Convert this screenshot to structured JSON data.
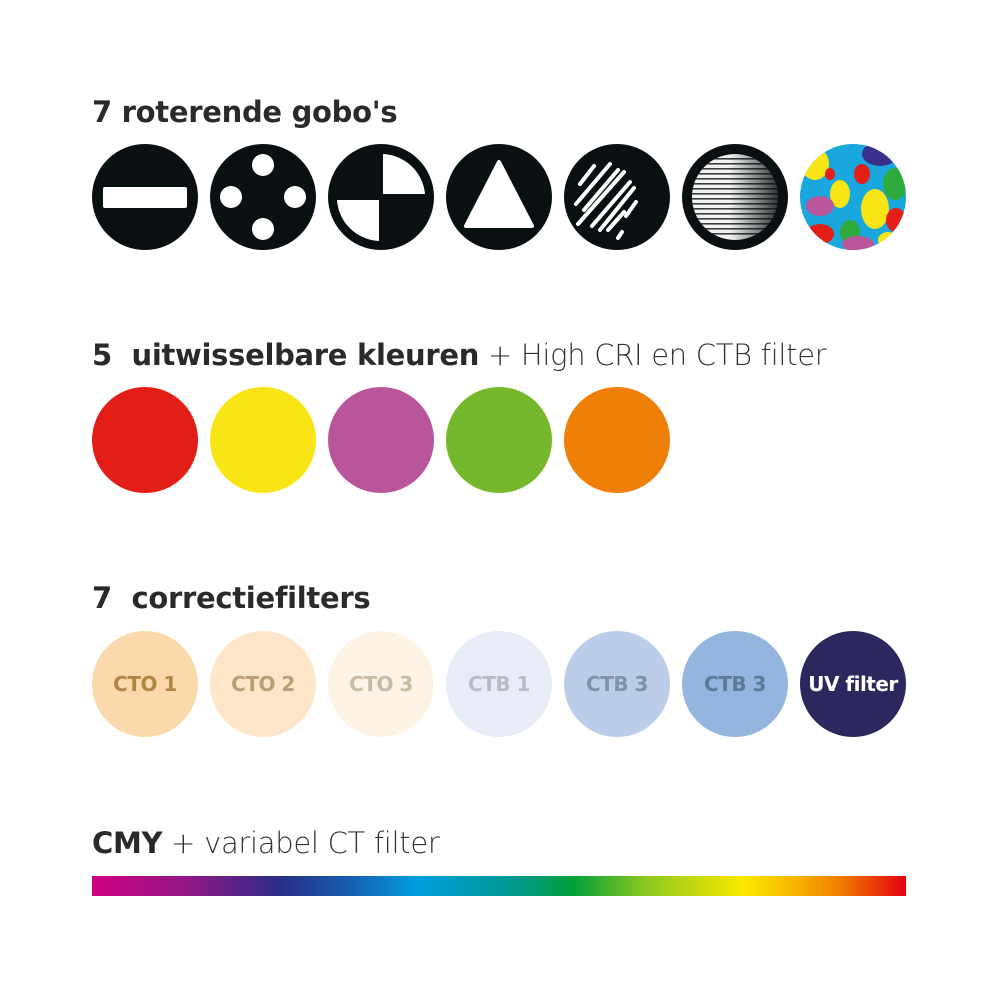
{
  "sections": {
    "gobos": {
      "title_bold": "7 roterende gobo's",
      "items": [
        "bar-gobo-icon",
        "four-dots-gobo-icon",
        "quadrant-gobo-icon",
        "triangle-gobo-icon",
        "streaks-gobo-icon",
        "lines-gradient-gobo-icon",
        "multicolor-pattern-gobo-icon"
      ]
    },
    "colors": {
      "title_bold": "5  uitwisselbare kleuren",
      "title_light": " + High CRI en CTB filter",
      "swatches": [
        "#e31e18",
        "#f9e516",
        "#b9569b",
        "#76b82c",
        "#f07f08"
      ]
    },
    "filters": {
      "title_bold": "7  correctiefilters",
      "items": [
        {
          "label": "CTO 1",
          "bg": "#fbd9ab",
          "fg": "#b08540"
        },
        {
          "label": "CTO 2",
          "bg": "#fde6ca",
          "fg": "#b89e74"
        },
        {
          "label": "CTO 3",
          "bg": "#fdf4e6",
          "fg": "#c7bba2"
        },
        {
          "label": "CTB 1",
          "bg": "#e8ecf7",
          "fg": "#b7bcc4"
        },
        {
          "label": "CTB 3",
          "bg": "#bccde9",
          "fg": "#7f93ab"
        },
        {
          "label": "CTB 3",
          "bg": "#93b5de",
          "fg": "#5d7a96"
        },
        {
          "label": "UV filter",
          "bg": "#2c285e",
          "fg": "#ffffff"
        }
      ]
    },
    "cmy": {
      "title_bold": "CMY",
      "title_light": " + variabel CT filter"
    }
  }
}
